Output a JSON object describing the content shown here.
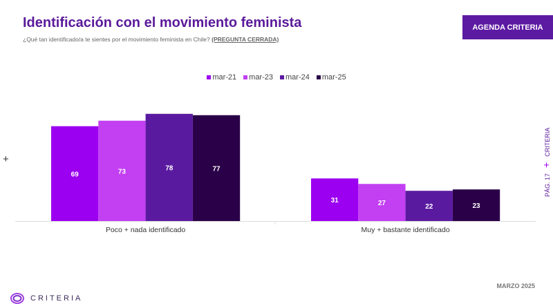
{
  "header": {
    "title": "Identificación con el movimiento feminista",
    "subtitle": "¿Qué tan identificado/a te sientes por el movimiento feminista en Chile?",
    "subtitle_tag": "(PREGUNTA CERRADA)",
    "badge": "AGENDA CRITERIA"
  },
  "side": {
    "page": "PÁG. 17",
    "brand": "CRITERIA"
  },
  "footer": {
    "date": "MARZO 2025",
    "logo": "CRITERIA"
  },
  "chart_data": {
    "type": "bar",
    "categories": [
      "Poco + nada identificado",
      "Muy + bastante identificado"
    ],
    "series": [
      {
        "name": "mar-21",
        "values": [
          69,
          31
        ],
        "color": "#9b00f0"
      },
      {
        "name": "mar-23",
        "values": [
          73,
          27
        ],
        "color": "#c23ff2"
      },
      {
        "name": "mar-24",
        "values": [
          78,
          22
        ],
        "color": "#5a1aa0"
      },
      {
        "name": "mar-25",
        "values": [
          77,
          23
        ],
        "color": "#2a0048"
      }
    ],
    "legend": "top",
    "grid": false
  }
}
